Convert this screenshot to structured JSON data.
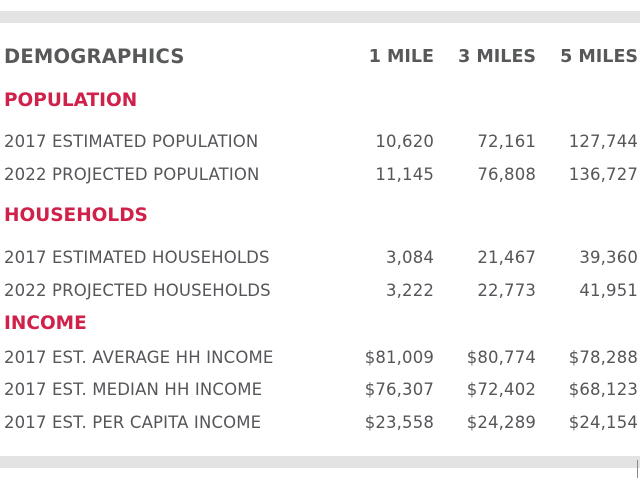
{
  "header": {
    "title": "DEMOGRAPHICS",
    "columns": [
      "1 MILE",
      "3 MILES",
      "5 MILES"
    ]
  },
  "sections": [
    {
      "title": "POPULATION",
      "rows": [
        {
          "label": "2017 ESTIMATED POPULATION",
          "values": [
            "10,620",
            "72,161",
            "127,744"
          ]
        },
        {
          "label": "2022 PROJECTED POPULATION",
          "values": [
            "11,145",
            "76,808",
            "136,727"
          ]
        }
      ]
    },
    {
      "title": "HOUSEHOLDS",
      "rows": [
        {
          "label": "2017 ESTIMATED HOUSEHOLDS",
          "values": [
            "3,084",
            "21,467",
            "39,360"
          ]
        },
        {
          "label": "2022 PROJECTED HOUSEHOLDS",
          "values": [
            "3,222",
            "22,773",
            "41,951"
          ]
        }
      ]
    },
    {
      "title": "INCOME",
      "rows": [
        {
          "label": "2017 EST. AVERAGE HH INCOME",
          "values": [
            "$81,009",
            "$80,774",
            "$78,288"
          ]
        },
        {
          "label": "2017 EST. MEDIAN HH INCOME",
          "values": [
            "$76,307",
            "$72,402",
            "$68,123"
          ]
        },
        {
          "label": "2017 EST. PER CAPITA INCOME",
          "values": [
            "$23,558",
            "$24,289",
            "$24,154"
          ]
        }
      ]
    }
  ],
  "colors": {
    "section_accent": "#d0214b",
    "text": "#58595b",
    "band": "#e3e3e3"
  }
}
